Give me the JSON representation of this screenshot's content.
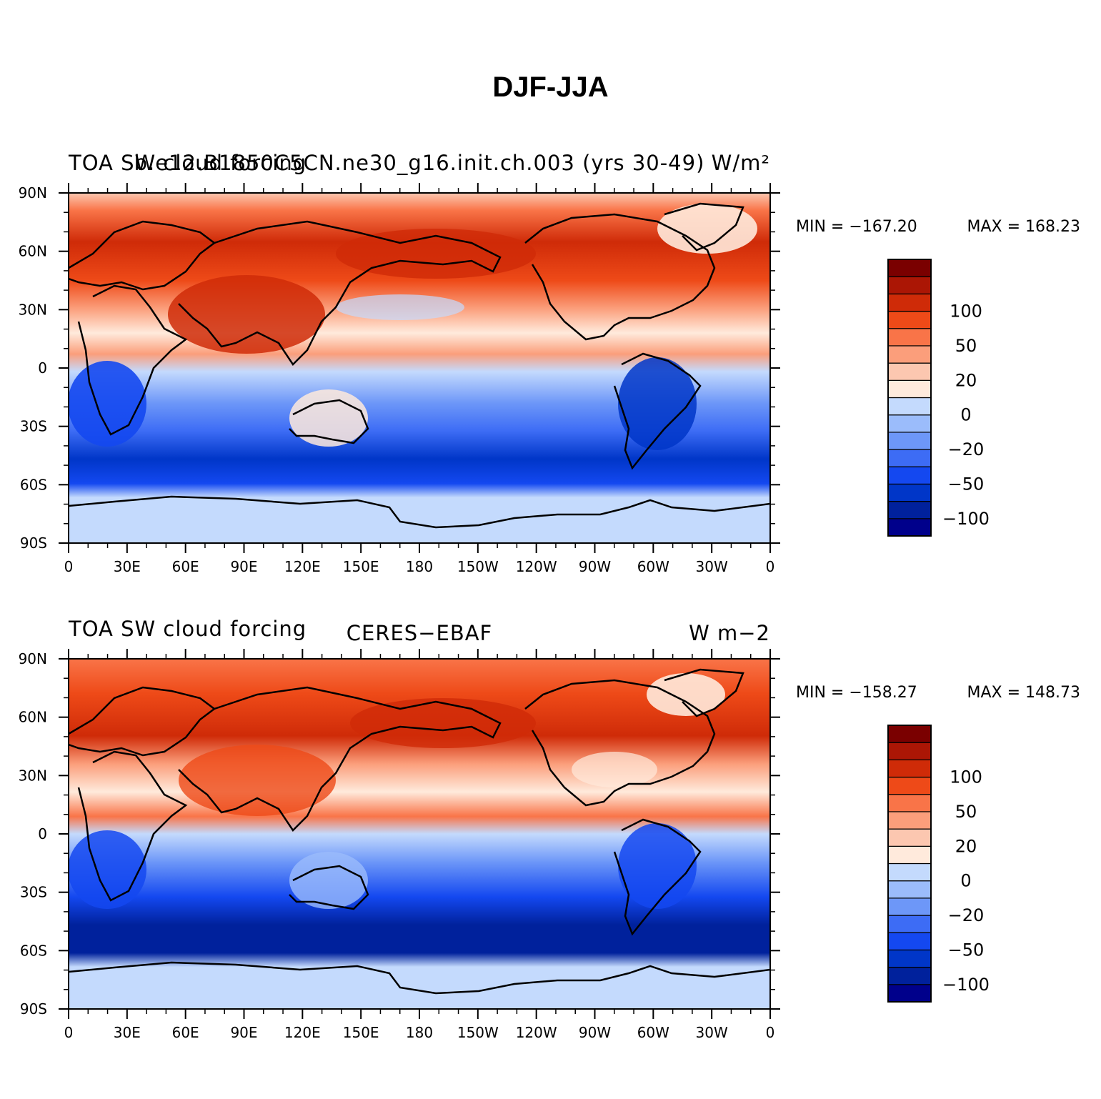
{
  "title": "DJF-JJA",
  "panels": [
    {
      "id": "model",
      "left_title": "TOA SW cloud forcing",
      "center_title": "b.e12.B1850C5CN.ne30_g16.init.ch.003 (yrs 30-49)",
      "units": "W/m²",
      "min_label": "MIN = −167.20",
      "max_label": "MAX = 168.23",
      "min": -167.2,
      "max": 168.23
    },
    {
      "id": "obs",
      "left_title": "TOA SW cloud forcing",
      "center_title": "CERES−EBAF",
      "units": "W m−2",
      "min_label": "MIN = −158.27",
      "max_label": "MAX = 148.73",
      "min": -158.27,
      "max": 148.73
    }
  ],
  "axes": {
    "lat_labels": [
      "90N",
      "60N",
      "30N",
      "0",
      "30S",
      "60S",
      "90S"
    ],
    "lon_labels": [
      "0",
      "30E",
      "60E",
      "90E",
      "120E",
      "150E",
      "180",
      "150W",
      "120W",
      "90W",
      "60W",
      "30W",
      "0"
    ]
  },
  "colorbar": {
    "colors": [
      "#00008b",
      "#00219c",
      "#0036c8",
      "#1448f0",
      "#3d6cf5",
      "#6d97f8",
      "#9bbcfb",
      "#c4dafd",
      "#ffeadc",
      "#fcc7b0",
      "#fb9e7b",
      "#f97448",
      "#ee4a18",
      "#cf2b08",
      "#ab1605",
      "#7a0000"
    ],
    "labels": [
      {
        "text": "100",
        "level": 13
      },
      {
        "text": "50",
        "level": 11
      },
      {
        "text": "20",
        "level": 9
      },
      {
        "text": "0",
        "level": 7
      },
      {
        "text": "−20",
        "level": 5
      },
      {
        "text": "−50",
        "level": 3
      },
      {
        "text": "−100",
        "level": 1
      }
    ]
  }
}
